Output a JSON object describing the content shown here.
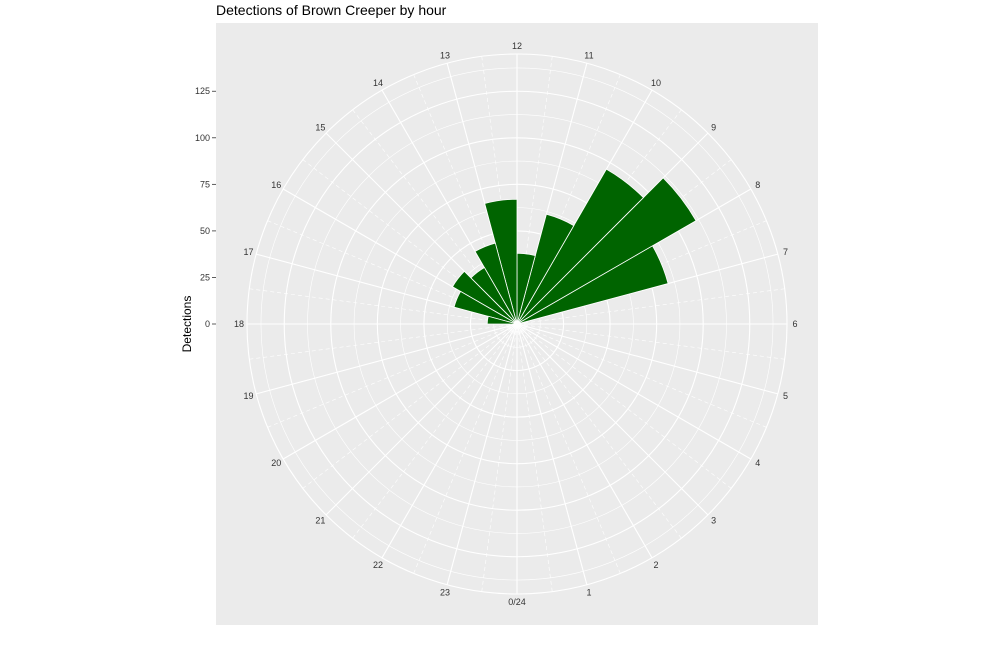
{
  "chart_data": {
    "type": "bar",
    "coord": "polar",
    "title": "Detections of Brown Creeper by hour",
    "xlabel": "",
    "ylabel": "Detections",
    "categories": [
      "0/24",
      "1",
      "2",
      "3",
      "4",
      "5",
      "6",
      "7",
      "8",
      "9",
      "10",
      "11",
      "12",
      "13",
      "14",
      "15",
      "16",
      "17",
      "18",
      "19",
      "20",
      "21",
      "22",
      "23"
    ],
    "values": [
      0,
      0,
      0,
      0,
      0,
      0,
      0,
      84,
      111,
      96,
      61,
      38,
      67,
      45,
      35,
      40,
      35,
      16,
      0,
      0,
      0,
      0,
      0,
      0
    ],
    "yticks": [
      0,
      25,
      50,
      75,
      100,
      125
    ],
    "ytick_labels": [
      "0",
      "25",
      "50",
      "75",
      "100",
      "125"
    ],
    "ylim": [
      0,
      145
    ],
    "grid": true,
    "colors": {
      "bar": "#006400",
      "panel": "#ebebeb",
      "grid": "#ffffff"
    }
  }
}
